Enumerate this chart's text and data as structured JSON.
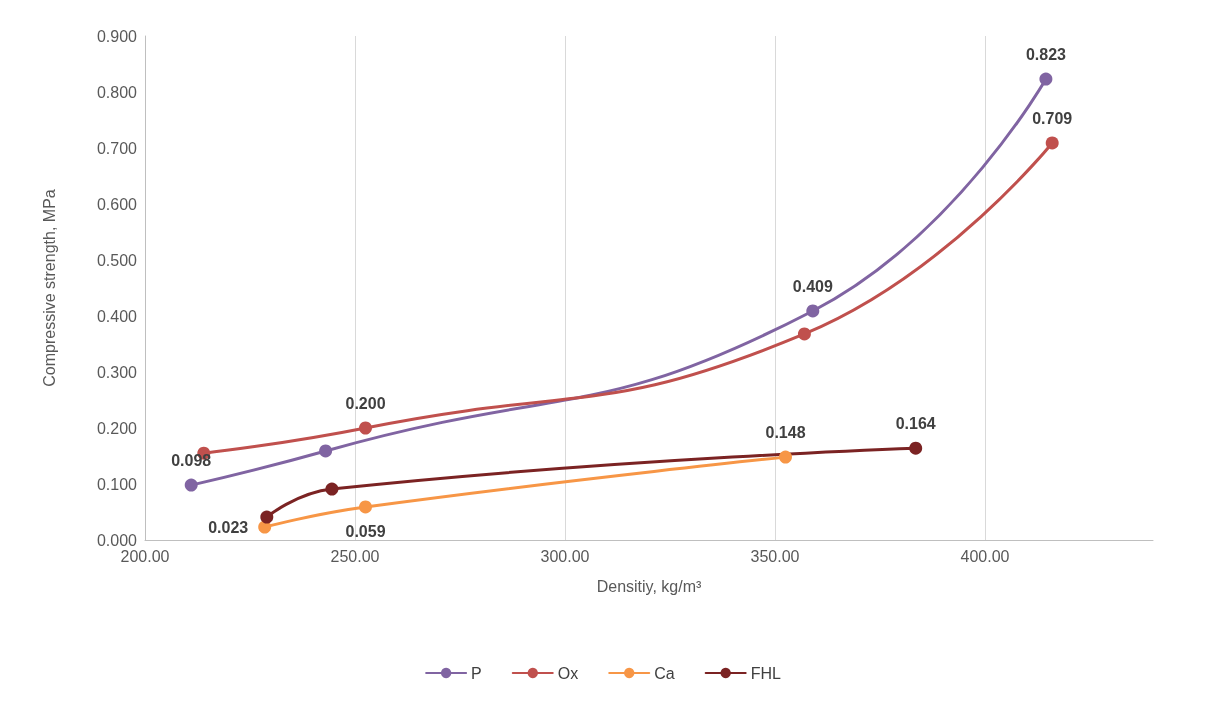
{
  "chart_data": {
    "type": "line",
    "xlabel": "Densitiy, kg/m³",
    "ylabel": "Compressive strength, MPa",
    "xlim": [
      200,
      440
    ],
    "xticks": [
      {
        "value": 200,
        "label": "200.00"
      },
      {
        "value": 250,
        "label": "250.00"
      },
      {
        "value": 300,
        "label": "300.00"
      },
      {
        "value": 350,
        "label": "350.00"
      },
      {
        "value": 400,
        "label": "400.00"
      }
    ],
    "ylim": [
      0,
      0.9
    ],
    "yticks": [
      {
        "value": 0,
        "label": "0.000"
      },
      {
        "value": 0.1,
        "label": "0.100"
      },
      {
        "value": 0.2,
        "label": "0.200"
      },
      {
        "value": 0.3,
        "label": "0.300"
      },
      {
        "value": 0.4,
        "label": "0.400"
      },
      {
        "value": 0.5,
        "label": "0.500"
      },
      {
        "value": 0.6,
        "label": "0.600"
      },
      {
        "value": 0.7,
        "label": "0.700"
      },
      {
        "value": 0.8,
        "label": "0.800"
      },
      {
        "value": 0.9,
        "label": "0.900"
      }
    ],
    "grid": "x",
    "legend": "bottom",
    "marker": "circle",
    "line_style": "solid",
    "series": [
      {
        "name": "P",
        "color": "#8064a2",
        "x": [
          211,
          243,
          359,
          414.5
        ],
        "values": [
          0.098,
          0.159,
          0.409,
          0.823
        ],
        "value_labels": [
          "0.098",
          null,
          "0.409",
          "0.823"
        ]
      },
      {
        "name": "Ox",
        "color": "#c0504d",
        "x": [
          214,
          252.5,
          357,
          416
        ],
        "values": [
          0.155,
          0.2,
          0.368,
          0.709
        ],
        "value_labels": [
          null,
          "0.200",
          null,
          "0.709"
        ]
      },
      {
        "name": "Ca",
        "color": "#f79646",
        "x": [
          228.5,
          252.5,
          352.5
        ],
        "values": [
          0.023,
          0.059,
          0.148
        ],
        "value_labels": [
          "0.023",
          "0.059",
          "0.148"
        ]
      },
      {
        "name": "FHL",
        "color": "#7b2323",
        "x": [
          229,
          244.5,
          383.5
        ],
        "values": [
          0.041,
          0.091,
          0.164
        ],
        "value_labels": [
          null,
          null,
          "0.164"
        ]
      }
    ]
  }
}
